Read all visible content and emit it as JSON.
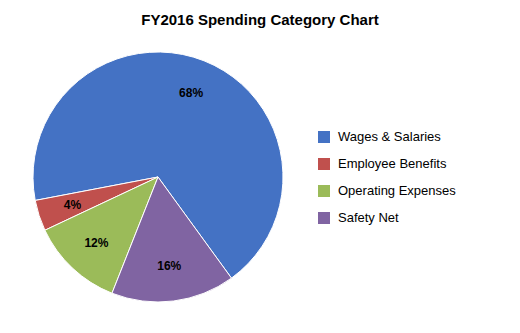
{
  "chart_data": {
    "type": "pie",
    "title": "FY2016 Spending Category Chart",
    "categories": [
      "Wages & Salaries",
      "Employee Benefits",
      "Operating Expenses",
      "Safety Net"
    ],
    "values": [
      68,
      4,
      12,
      16
    ],
    "value_labels": [
      "68%",
      "4%",
      "12%",
      "16%"
    ],
    "colors": [
      "#4472C4",
      "#C0504D",
      "#9BBB59",
      "#8064A2"
    ],
    "data_labels": true,
    "legend": "right"
  }
}
